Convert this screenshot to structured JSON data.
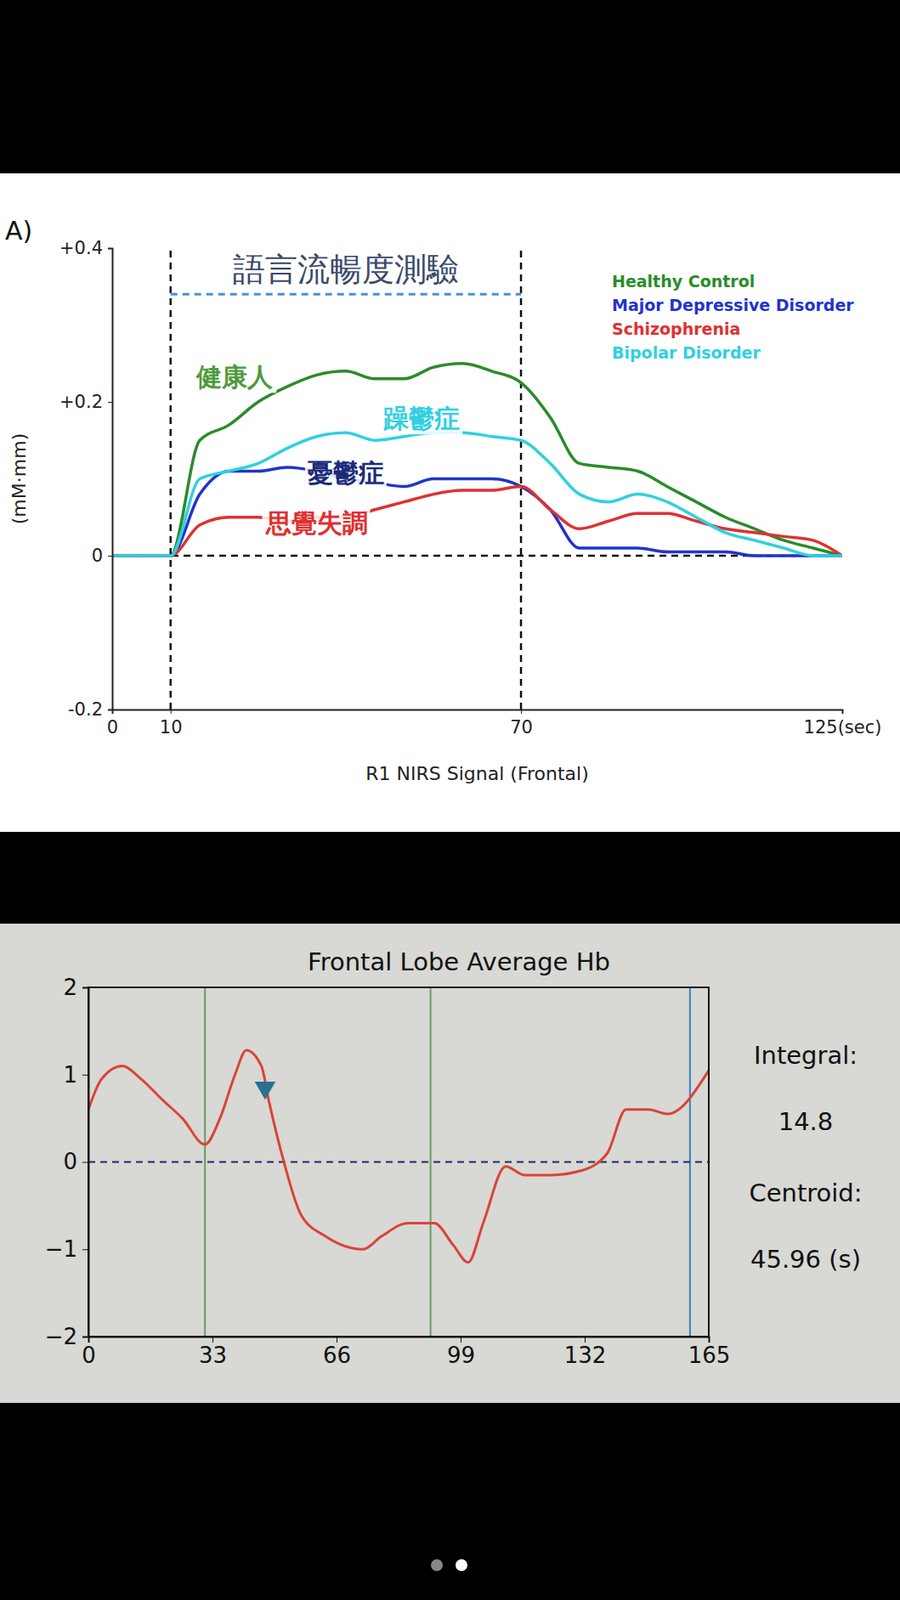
{
  "chart_data": [
    {
      "type": "line",
      "panel_label": "A)",
      "x_label": "R1 NIRS Signal (Frontal)",
      "y_label": "(mM·mm)",
      "x": [
        0,
        5,
        10,
        15,
        20,
        25,
        30,
        35,
        40,
        45,
        50,
        55,
        60,
        65,
        70,
        75,
        80,
        85,
        90,
        95,
        100,
        105,
        110,
        115,
        120,
        125
      ],
      "series": [
        {
          "name": "Healthy Control",
          "color": "#2a8c2a",
          "values": [
            0,
            0,
            0,
            0.15,
            0.17,
            0.2,
            0.22,
            0.235,
            0.24,
            0.23,
            0.23,
            0.245,
            0.25,
            0.24,
            0.225,
            0.18,
            0.12,
            0.115,
            0.11,
            0.09,
            0.07,
            0.05,
            0.035,
            0.02,
            0.01,
            0
          ]
        },
        {
          "name": "Major Depressive Disorder",
          "color": "#2233cc",
          "values": [
            0,
            0,
            0,
            0.08,
            0.11,
            0.11,
            0.115,
            0.11,
            0.1,
            0.095,
            0.09,
            0.1,
            0.1,
            0.1,
            0.09,
            0.06,
            0.01,
            0.01,
            0.01,
            0.005,
            0.005,
            0.005,
            0,
            0,
            0,
            0
          ]
        },
        {
          "name": "Schizophrenia",
          "color": "#e03030",
          "values": [
            0,
            0,
            0,
            0.04,
            0.05,
            0.05,
            0.045,
            0.05,
            0.05,
            0.06,
            0.07,
            0.08,
            0.085,
            0.085,
            0.09,
            0.06,
            0.035,
            0.045,
            0.055,
            0.055,
            0.045,
            0.035,
            0.03,
            0.025,
            0.02,
            0
          ]
        },
        {
          "name": "Bipolar Disorder",
          "color": "#30d0e0",
          "values": [
            0,
            0,
            0,
            0.1,
            0.11,
            0.12,
            0.14,
            0.155,
            0.16,
            0.15,
            0.155,
            0.16,
            0.16,
            0.155,
            0.15,
            0.12,
            0.08,
            0.07,
            0.08,
            0.07,
            0.05,
            0.03,
            0.02,
            0.01,
            0,
            0
          ]
        }
      ],
      "xlim": [
        0,
        125
      ],
      "xticks": [
        0,
        10,
        70,
        {
          "value": 125,
          "label": "125(sec)"
        }
      ],
      "ylim": [
        -0.2,
        0.4
      ],
      "yticks": [
        -0.2,
        0,
        {
          "value": 0.2,
          "label": "+0.2"
        },
        {
          "value": 0.4,
          "label": "+0.4"
        }
      ],
      "legend": "top-right",
      "vlines": [
        {
          "x": 10,
          "color": "#111111",
          "line_style": "dashed"
        },
        {
          "x": 70,
          "color": "#111111",
          "line_style": "dashed"
        }
      ],
      "hlines": [
        {
          "y": 0,
          "color": "#111111",
          "line_style": "dashed"
        }
      ],
      "task": {
        "label": "語言流暢度測驗",
        "start": 10,
        "end": 70,
        "y": 0.34,
        "color": "#4a90d9",
        "line_style": "dashed"
      },
      "annotations": [
        {
          "text": "健康人",
          "x": 21,
          "y": 0.23,
          "color": "#4f9a3c"
        },
        {
          "text": "躁鬱症",
          "x": 53,
          "y": 0.176,
          "color": "#30d0e0"
        },
        {
          "text": "憂鬱症",
          "x": 40,
          "y": 0.106,
          "color": "#1a2a7a"
        },
        {
          "text": "思覺失調",
          "x": 35,
          "y": 0.04,
          "color": "#e03030"
        }
      ]
    },
    {
      "type": "line",
      "title": "Frontal Lobe Average Hb",
      "x": [
        0,
        3.5,
        9,
        14,
        20,
        25,
        31,
        35,
        39,
        42,
        46,
        48,
        52,
        56.5,
        63,
        73,
        78,
        85,
        92,
        97,
        101,
        105,
        111,
        116,
        123,
        131,
        138,
        143,
        149,
        154,
        165
      ],
      "series": [
        {
          "color": "#d9443a",
          "values": [
            0.6,
            0.95,
            1.1,
            0.95,
            0.7,
            0.5,
            0.2,
            0.5,
            1.0,
            1.28,
            1.1,
            0.7,
            0.0,
            -0.6,
            -0.85,
            -1.0,
            -0.85,
            -0.7,
            -0.7,
            -0.95,
            -1.15,
            -0.7,
            -0.05,
            -0.15,
            -0.15,
            -0.1,
            0.1,
            0.6,
            0.6,
            0.55,
            1.05
          ]
        }
      ],
      "xlim": [
        0,
        165
      ],
      "xticks": [
        0,
        33,
        66,
        99,
        132,
        165
      ],
      "ylim": [
        -2,
        2
      ],
      "yticks": [
        {
          "value": -2,
          "label": "−2"
        },
        {
          "value": -1,
          "label": "−1"
        },
        0,
        1,
        2
      ],
      "vlines": [
        {
          "x": 31,
          "color": "#6a9a6a",
          "line_style": "solid"
        },
        {
          "x": 91,
          "color": "#6a9a6a",
          "line_style": "solid"
        },
        {
          "x": 160,
          "color": "#3a7ec4",
          "line_style": "solid"
        }
      ],
      "hlines": [
        {
          "y": 0,
          "color": "#1a2a6a",
          "line_style": "dashed"
        }
      ],
      "point_marker": {
        "x": 47,
        "y": 0.85,
        "color": "#2a6f8f",
        "marker": "triangle-down"
      },
      "stats": [
        {
          "label": "Integral:",
          "value": "14.8"
        },
        {
          "label": "Centroid:",
          "value": "45.96 (s)"
        }
      ]
    }
  ]
}
